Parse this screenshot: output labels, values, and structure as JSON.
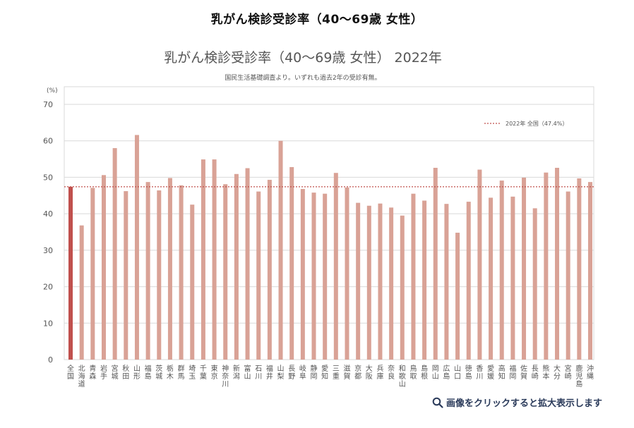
{
  "page_heading": "乳がん検診受診率（40〜69歳 女性）",
  "enlarge_caption": "画像をクリックすると拡大表示します",
  "colors": {
    "bar": "#d9a296",
    "highlight_bar": "#c0504d",
    "reference_line": "#c0504d",
    "grid": "#d9d9d9",
    "text": "#555555"
  },
  "chart_data": {
    "type": "bar",
    "title": "乳がん検診受診率（40〜69歳 女性） 2022年",
    "subtitle": "国民生活基礎調査より。いずれも過去2年の受診有無。",
    "ylabel": "(%)",
    "ylim": [
      0,
      70
    ],
    "yticks": [
      0,
      10,
      20,
      30,
      40,
      50,
      60,
      70
    ],
    "grid": true,
    "legend": "top-right",
    "reference_line": {
      "label": "2022年 全国（47.4%）",
      "value": 47.4
    },
    "categories": [
      "全国",
      "北海道",
      "青森",
      "岩手",
      "宮城",
      "秋田",
      "山形",
      "福島",
      "茨城",
      "栃木",
      "群馬",
      "埼玉",
      "千葉",
      "東京",
      "神奈川",
      "新潟",
      "富山",
      "石川",
      "福井",
      "山梨",
      "長野",
      "岐阜",
      "静岡",
      "愛知",
      "三重",
      "滋賀",
      "京都",
      "大阪",
      "兵庫",
      "奈良",
      "和歌山",
      "鳥取",
      "島根",
      "岡山",
      "広島",
      "山口",
      "徳島",
      "香川",
      "愛媛",
      "高知",
      "福岡",
      "佐賀",
      "長崎",
      "熊本",
      "大分",
      "宮崎",
      "鹿児島",
      "沖縄"
    ],
    "values": [
      47.4,
      36.8,
      47.1,
      50.6,
      58.0,
      46.2,
      61.6,
      48.7,
      46.4,
      49.8,
      47.8,
      42.5,
      54.9,
      54.9,
      48.1,
      50.9,
      52.5,
      46.1,
      49.3,
      60.0,
      52.8,
      46.8,
      45.8,
      45.5,
      51.2,
      47.2,
      43.0,
      42.2,
      42.8,
      41.7,
      39.5,
      45.5,
      43.6,
      52.6,
      42.7,
      34.8,
      43.3,
      52.1,
      44.4,
      49.1,
      44.7,
      49.9,
      41.5,
      51.3,
      52.6,
      46.1,
      49.7,
      48.7
    ],
    "highlight_index": 0
  }
}
